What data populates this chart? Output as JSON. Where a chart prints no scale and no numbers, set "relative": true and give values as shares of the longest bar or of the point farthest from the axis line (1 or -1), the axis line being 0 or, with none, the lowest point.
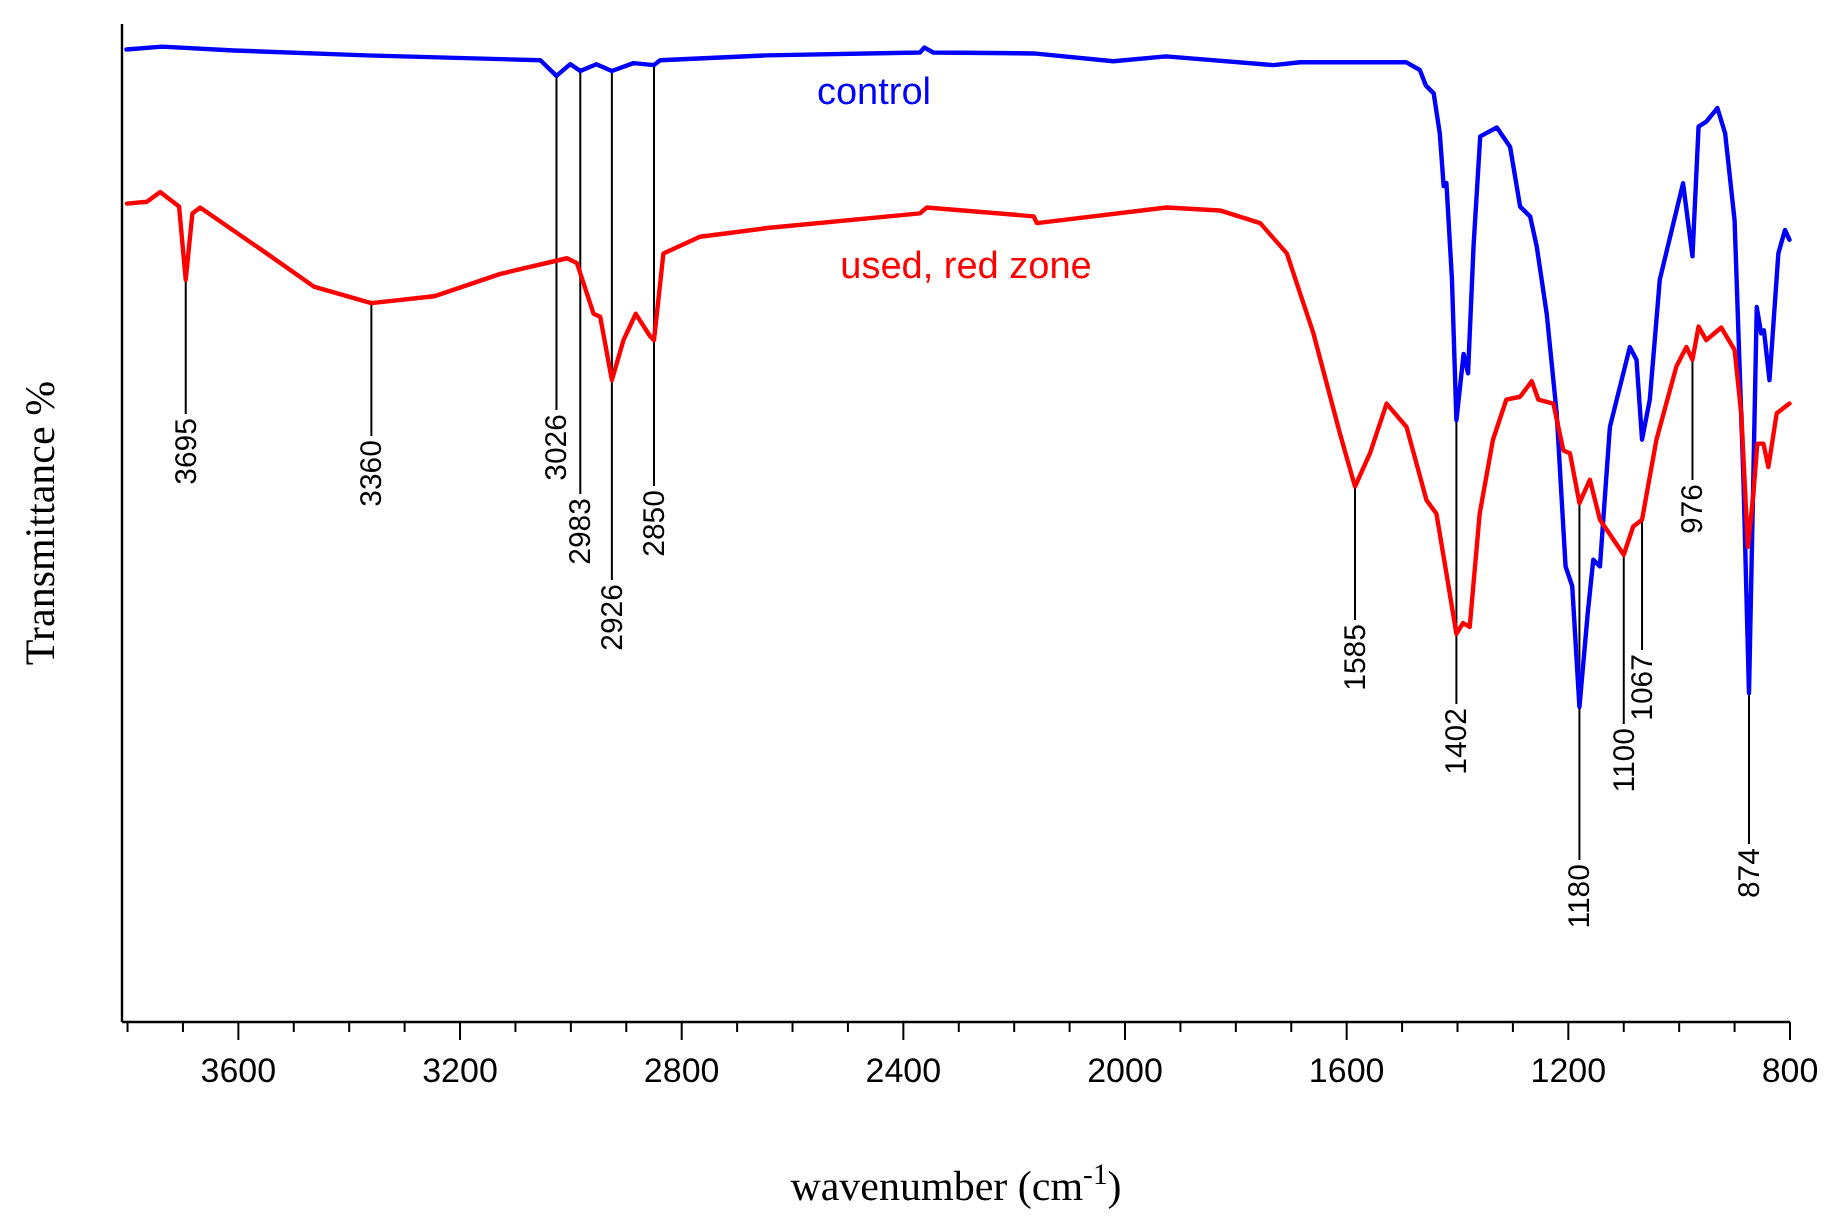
{
  "chart_data": {
    "type": "line",
    "relative": true,
    "xlabel": "wavenumber (cm$^{-1}$)",
    "ylabel": "Transmittance %",
    "legend": false,
    "grid": false,
    "tick_labels": "x",
    "xlim": [
      3810,
      800
    ],
    "xticks": [
      {
        "value": 3800,
        "label": null
      },
      {
        "value": 3700,
        "label": null
      },
      3600,
      {
        "value": 3500,
        "label": null
      },
      {
        "value": 3400,
        "label": null
      },
      {
        "value": 3300,
        "label": null
      },
      3200,
      {
        "value": 3100,
        "label": null
      },
      {
        "value": 3000,
        "label": null
      },
      {
        "value": 2900,
        "label": null
      },
      2800,
      {
        "value": 2700,
        "label": null
      },
      {
        "value": 2600,
        "label": null
      },
      {
        "value": 2500,
        "label": null
      },
      2400,
      {
        "value": 2300,
        "label": null
      },
      {
        "value": 2200,
        "label": null
      },
      {
        "value": 2100,
        "label": null
      },
      2000,
      {
        "value": 1900,
        "label": null
      },
      {
        "value": 1800,
        "label": null
      },
      {
        "value": 1700,
        "label": null
      },
      1600,
      {
        "value": 1500,
        "label": null
      },
      {
        "value": 1400,
        "label": null
      },
      {
        "value": 1300,
        "label": null
      },
      1200,
      {
        "value": 1100,
        "label": null
      },
      {
        "value": 1000,
        "label": null
      },
      {
        "value": 900,
        "label": null
      },
      800
    ],
    "series": [
      {
        "name": "control",
        "color": "#0000ff",
        "x": [
          3802,
          3738,
          3608,
          3369,
          3055,
          3026,
          3001,
          2983,
          2954,
          2926,
          2887,
          2850,
          2839,
          2647,
          2370,
          2362,
          2346,
          2165,
          2021,
          1926,
          1732,
          1684,
          1493,
          1468,
          1457,
          1443,
          1432,
          1425,
          1420,
          1410,
          1402,
          1389,
          1381,
          1371,
          1359,
          1329,
          1305,
          1287,
          1269,
          1257,
          1239,
          1221,
          1205,
          1193,
          1180,
          1165,
          1155,
          1143,
          1125,
          1089,
          1077,
          1067,
          1053,
          1035,
          993,
          976,
          965,
          951,
          931,
          917,
          900,
          884,
          874,
          860,
          852,
          847,
          837,
          821,
          809,
          801
        ],
        "values": [
          0.997,
          1,
          0.996,
          0.991,
          0.986,
          0.97,
          0.982,
          0.975,
          0.982,
          0.975,
          0.983,
          0.981,
          0.986,
          0.991,
          0.994,
          0.999,
          0.994,
          0.993,
          0.985,
          0.99,
          0.981,
          0.984,
          0.984,
          0.976,
          0.96,
          0.952,
          0.911,
          0.857,
          0.86,
          0.761,
          0.617,
          0.685,
          0.665,
          0.796,
          0.908,
          0.917,
          0.897,
          0.836,
          0.826,
          0.795,
          0.726,
          0.624,
          0.467,
          0.447,
          0.323,
          0.419,
          0.474,
          0.467,
          0.61,
          0.692,
          0.679,
          0.597,
          0.638,
          0.761,
          0.86,
          0.785,
          0.918,
          0.923,
          0.937,
          0.911,
          0.822,
          0.556,
          0.337,
          0.733,
          0.706,
          0.709,
          0.658,
          0.788,
          0.812,
          0.802
        ]
      },
      {
        "name": "used, red zone",
        "color": "#ff0000",
        "x": [
          3801,
          3765,
          3741,
          3723,
          3707,
          3695,
          3683,
          3669,
          3549,
          3464,
          3360,
          3247,
          3127,
          3007,
          2989,
          2959,
          2947,
          2926,
          2905,
          2883,
          2857,
          2850,
          2833,
          2767,
          2646,
          2370,
          2358,
          2165,
          2159,
          1925,
          1829,
          1756,
          1708,
          1660,
          1612,
          1585,
          1558,
          1528,
          1492,
          1456,
          1438,
          1420,
          1402,
          1390,
          1378,
          1360,
          1336,
          1312,
          1287,
          1266,
          1254,
          1227,
          1209,
          1197,
          1180,
          1161,
          1143,
          1100,
          1083,
          1067,
          1041,
          1005,
          987,
          976,
          965,
          951,
          924,
          900,
          888,
          876,
          866,
          859,
          848,
          839,
          824,
          801
        ],
        "values": [
          0.839,
          0.841,
          0.851,
          0.843,
          0.836,
          0.761,
          0.829,
          0.835,
          0.788,
          0.754,
          0.737,
          0.744,
          0.767,
          0.783,
          0.778,
          0.726,
          0.723,
          0.658,
          0.699,
          0.726,
          0.703,
          0.699,
          0.788,
          0.805,
          0.814,
          0.829,
          0.835,
          0.826,
          0.819,
          0.835,
          0.832,
          0.819,
          0.788,
          0.706,
          0.603,
          0.549,
          0.583,
          0.634,
          0.61,
          0.535,
          0.521,
          0.46,
          0.398,
          0.409,
          0.405,
          0.521,
          0.597,
          0.638,
          0.641,
          0.657,
          0.638,
          0.634,
          0.586,
          0.583,
          0.532,
          0.556,
          0.515,
          0.479,
          0.508,
          0.515,
          0.597,
          0.672,
          0.692,
          0.679,
          0.713,
          0.699,
          0.712,
          0.689,
          0.624,
          0.487,
          0.542,
          0.593,
          0.593,
          0.569,
          0.624,
          0.634
        ]
      }
    ],
    "annotations": [
      {
        "text": "3695",
        "x": 3695,
        "y": 0.761
      },
      {
        "text": "3360",
        "x": 3360,
        "y": 0.737
      },
      {
        "text": "3026",
        "x": 3026,
        "y": 0.97
      },
      {
        "text": "2983",
        "x": 2983,
        "y": 0.975
      },
      {
        "text": "2926",
        "x": 2926,
        "y": 0.975
      },
      {
        "text": "2850",
        "x": 2850,
        "y": 0.981
      },
      {
        "text": "1585",
        "x": 1585,
        "y": 0.549
      },
      {
        "text": "1402",
        "x": 1402,
        "y": 0.617
      },
      {
        "text": "1180",
        "x": 1180,
        "y": 0.532
      },
      {
        "text": "1100",
        "x": 1100,
        "y": 0.479
      },
      {
        "text": "1067",
        "x": 1067,
        "y": 0.515
      },
      {
        "text": "976",
        "x": 976,
        "y": 0.679
      },
      {
        "text": "874",
        "x": 874,
        "y": 0.337
      }
    ]
  }
}
